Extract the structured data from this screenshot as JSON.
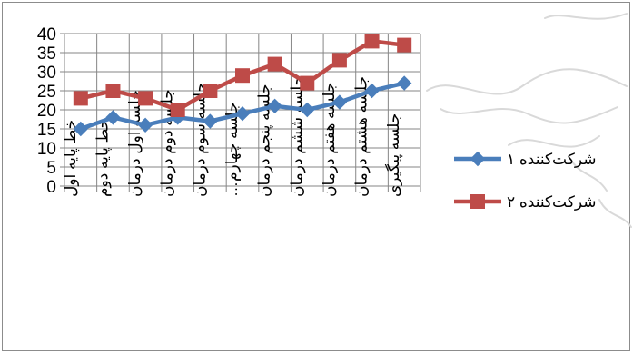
{
  "chart_data": {
    "type": "line",
    "title": "",
    "xlabel": "",
    "ylabel": "",
    "ylim": [
      0,
      40
    ],
    "yticks": [
      0,
      5,
      10,
      15,
      20,
      25,
      30,
      35,
      40
    ],
    "grid": true,
    "legend_position": "right",
    "categories": [
      "خط پایه اول",
      "خط پایه دوم",
      "جلسه اول درمان",
      "جلسه دوم درمان",
      "جلسه سوم درمان",
      "جلسه چهارم…",
      "جلسه پنجم درمان",
      "جلسه ششم درمان",
      "جلسه هفتم درمان",
      "جلسه هشتم درمان",
      "جلسه پیگیری"
    ],
    "series": [
      {
        "name": "شرکت‌کننده ۱",
        "marker": "diamond",
        "color": "#4a7ebb",
        "values": [
          15,
          18,
          16,
          18,
          17,
          19,
          21,
          20,
          22,
          25,
          27
        ]
      },
      {
        "name": "شرکت‌کننده ۲",
        "marker": "square",
        "color": "#be4b48",
        "values": [
          23,
          25,
          23,
          20,
          25,
          29,
          32,
          27,
          33,
          38,
          37
        ]
      }
    ]
  }
}
